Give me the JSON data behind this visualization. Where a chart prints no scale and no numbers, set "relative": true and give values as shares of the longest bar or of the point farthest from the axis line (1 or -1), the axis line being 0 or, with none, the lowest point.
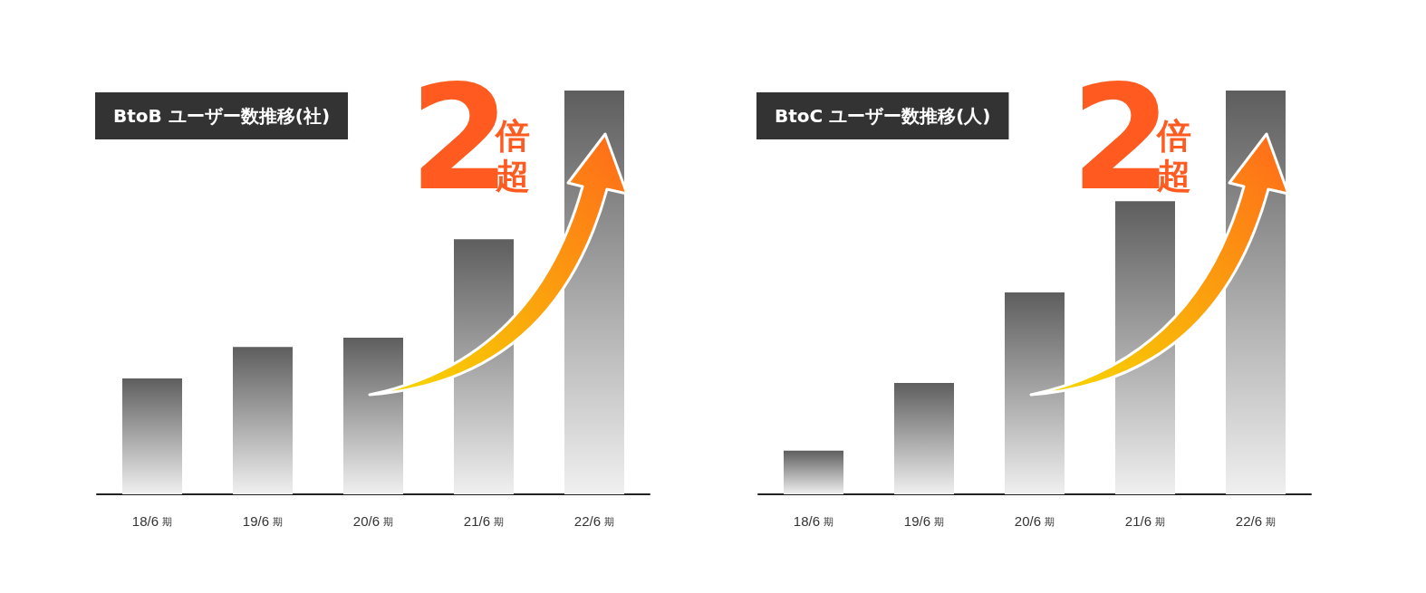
{
  "chart_data": [
    {
      "type": "bar",
      "title": "BtoB ユーザー数推移(社)",
      "categories": [
        "18/6 期",
        "19/6 期",
        "20/6 期",
        "21/6 期",
        "22/6 期"
      ],
      "values": [
        0.287,
        0.365,
        0.388,
        0.632,
        1
      ],
      "color": "#5e5e5e",
      "relative": true,
      "annotations": [
        "2倍超"
      ]
    },
    {
      "type": "bar",
      "title": "BtoC ユーザー数推移(人)",
      "categories": [
        "18/6 期",
        "19/6 期",
        "20/6 期",
        "21/6 期",
        "22/6 期"
      ],
      "values": [
        0.108,
        0.276,
        0.5,
        0.726,
        1
      ],
      "color": "#5e5e5e",
      "relative": true,
      "annotations": [
        "2倍超"
      ]
    }
  ]
}
